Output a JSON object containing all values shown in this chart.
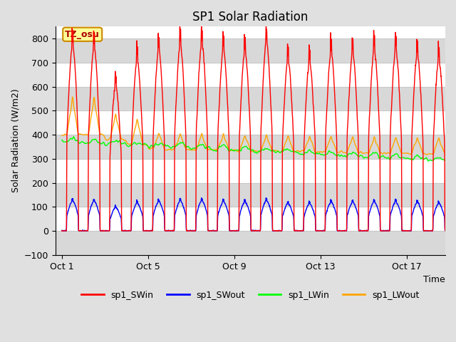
{
  "title": "SP1 Solar Radiation",
  "xlabel": "Time",
  "ylabel": "Solar Radiation (W/m2)",
  "ylim": [
    -100,
    850
  ],
  "yticks": [
    -100,
    0,
    100,
    200,
    300,
    400,
    500,
    600,
    700,
    800
  ],
  "xtick_labels": [
    "Oct 1",
    "Oct 5",
    "Oct 9",
    "Oct 13",
    "Oct 17"
  ],
  "xtick_positions": [
    0,
    4,
    8,
    12,
    16
  ],
  "n_days": 18,
  "color_SWin": "#ff0000",
  "color_SWout": "#0000ff",
  "color_LWin": "#00ff00",
  "color_LWout": "#ffa500",
  "annotation_text": "TZ_osu",
  "annotation_bg": "#ffff99",
  "annotation_border": "#cc8800",
  "annotation_text_color": "#aa0000",
  "legend_labels": [
    "sp1_SWin",
    "sp1_SWout",
    "sp1_LWin",
    "sp1_LWout"
  ],
  "plot_bg": "#ffffff",
  "fig_bg": "#e0e0e0",
  "grid_color": "#c8c8c8",
  "band_color": "#d8d8d8",
  "linewidth": 1.0,
  "title_fontsize": 12
}
